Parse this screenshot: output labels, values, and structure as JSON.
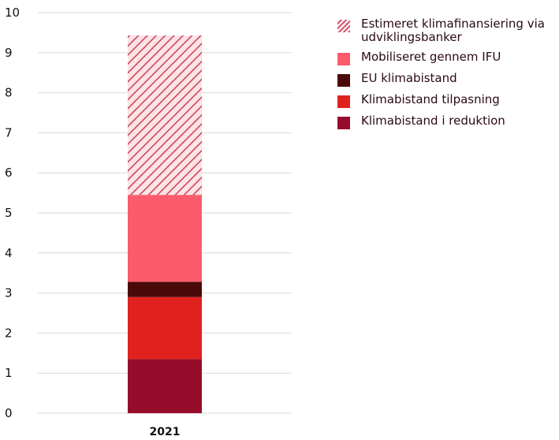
{
  "chart_data": {
    "type": "bar",
    "stacked": true,
    "categories": [
      "2021"
    ],
    "ylim": [
      0,
      10
    ],
    "yticks": [
      0,
      1,
      2,
      3,
      4,
      5,
      6,
      7,
      8,
      9,
      10
    ],
    "grid": true,
    "legend_position": "right",
    "series": [
      {
        "name": "Klimabistand i reduktion",
        "values": [
          1.35
        ],
        "color": "#960d2c",
        "pattern": "solid"
      },
      {
        "name": "Klimabistand tilpasning",
        "values": [
          1.55
        ],
        "color": "#e0221f",
        "pattern": "solid"
      },
      {
        "name": "EU klimabistand",
        "values": [
          0.38
        ],
        "color": "#4a0a0a",
        "pattern": "solid"
      },
      {
        "name": "Mobiliseret gennem IFU",
        "values": [
          2.17
        ],
        "color": "#fb5b6b",
        "pattern": "solid"
      },
      {
        "name": "Estimeret klimafinansiering via udviklingsbanker",
        "values": [
          3.98
        ],
        "color": "#fb5b6b",
        "pattern": "hatched"
      }
    ],
    "legend_order": [
      "Estimeret klimafinansiering via udviklingsbanker",
      "Mobiliseret gennem IFU",
      "EU klimabistand",
      "Klimabistand tilpasning",
      "Klimabistand i reduktion"
    ]
  }
}
